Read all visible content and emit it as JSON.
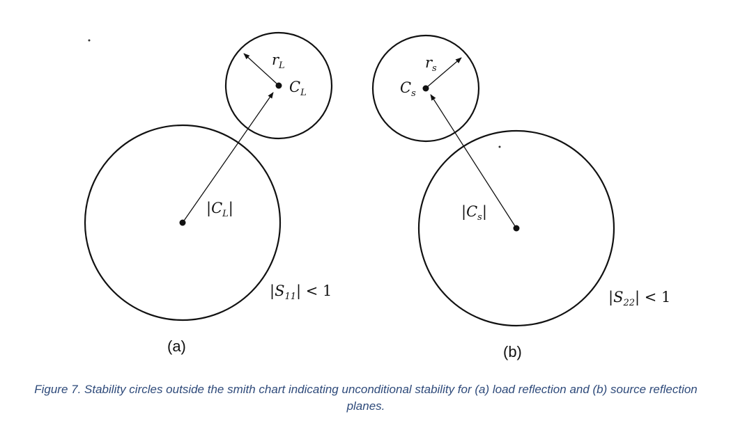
{
  "panel_a": {
    "label": "(a)",
    "radius_label": {
      "main": "r",
      "sub": "L"
    },
    "center_label": {
      "main": "C",
      "sub": "L"
    },
    "distance_label": {
      "open": "|",
      "main": "C",
      "sub": "L",
      "close": "|"
    },
    "region_label": {
      "open": "|",
      "main": "S",
      "sub": "11",
      "rest": "| < 1"
    }
  },
  "panel_b": {
    "label": "(b)",
    "radius_label": {
      "main": "r",
      "sub": "s"
    },
    "center_label": {
      "main": "C",
      "sub": "s"
    },
    "distance_label": {
      "open": "|",
      "main": "C",
      "sub": "s",
      "close": "|"
    },
    "region_label": {
      "open": "|",
      "main": "S",
      "sub": "22",
      "rest": "| < 1"
    }
  },
  "caption": "Figure 7. Stability circles outside the smith chart indicating unconditional stability for (a) load reflection and (b) source reflection planes."
}
